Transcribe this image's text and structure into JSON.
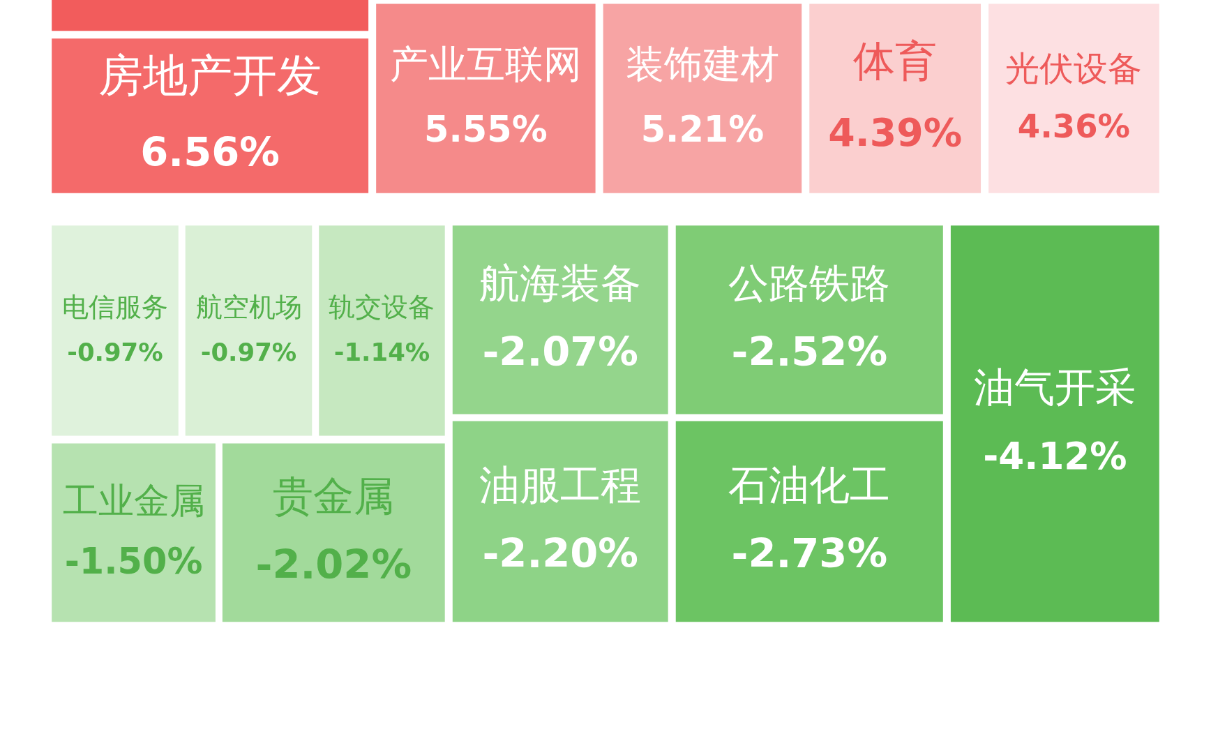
{
  "chart_data": {
    "type": "other",
    "categories": [
      null,
      "房地产开发",
      "产业互联网",
      "装饰建材",
      "体育",
      "光伏设备",
      "电信服务",
      "航空机场",
      "轨交设备",
      "航海装备",
      "公路铁路",
      "油气开采",
      "工业金属",
      "贵金属",
      "油服工程",
      "石油化工"
    ],
    "values": [
      null,
      6.56,
      5.55,
      5.21,
      4.39,
      4.36,
      -0.97,
      -0.97,
      -1.14,
      -2.07,
      -2.52,
      -4.12,
      -1.5,
      -2.02,
      -2.2,
      -2.73
    ],
    "value_labels": [
      null,
      "6.56%",
      "5.55%",
      "5.21%",
      "4.39%",
      "4.36%",
      "-0.97%",
      "-0.97%",
      "-1.14%",
      "-2.07%",
      "-2.52%",
      "-4.12%",
      "-1.50%",
      "-2.02%",
      "-2.20%",
      "-2.73%"
    ],
    "colors": [
      "#f25c5c",
      "#f46a6a",
      "#f58a8a",
      "#f7a4a4",
      "#fbcfcf",
      "#fde0e2",
      "#dff2dc",
      "#daf0d6",
      "#c6e8c0",
      "#94d58c",
      "#7fcc75",
      "#5cbb54",
      "#b6e2b0",
      "#a2da9b",
      "#8ed387",
      "#6cc463"
    ]
  }
}
